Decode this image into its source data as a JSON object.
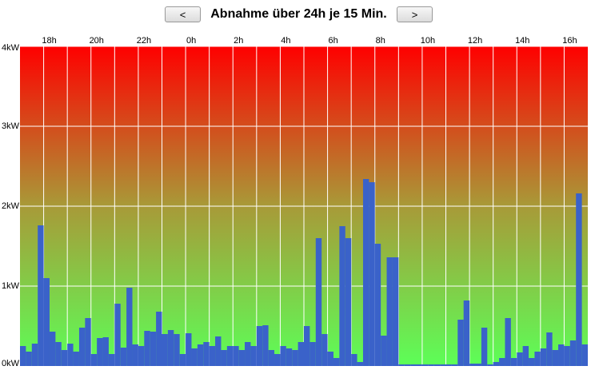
{
  "controls": {
    "prev": "<",
    "next": ">"
  },
  "chart_data": {
    "type": "bar",
    "title": "Abnahme über 24h je 15 Min.",
    "color": "#3a62c9",
    "x": [
      17,
      17.25,
      17.5,
      17.75,
      18,
      18.25,
      18.5,
      18.75,
      19,
      19.25,
      19.5,
      19.75,
      20,
      20.25,
      20.5,
      20.75,
      21,
      21.25,
      21.5,
      21.75,
      22,
      22.25,
      22.5,
      22.75,
      23,
      23.25,
      23.5,
      23.75,
      24,
      24.25,
      24.5,
      24.75,
      25,
      25.25,
      25.5,
      25.75,
      26,
      26.25,
      26.5,
      26.75,
      27,
      27.25,
      27.5,
      27.75,
      28,
      28.25,
      28.5,
      28.75,
      29,
      29.25,
      29.5,
      29.75,
      30,
      30.25,
      30.5,
      30.75,
      31,
      31.25,
      31.5,
      31.75,
      32,
      32.25,
      32.5,
      32.75,
      33,
      33.25,
      33.5,
      33.75,
      34,
      34.25,
      34.5,
      34.75,
      35,
      35.25,
      35.5,
      35.75,
      36,
      36.25,
      36.5,
      36.75,
      37,
      37.25,
      37.5,
      37.75,
      38,
      38.25,
      38.5,
      38.75,
      39,
      39.25,
      39.5,
      39.75,
      40,
      40.25,
      40.5,
      40.75
    ],
    "values": [
      0.25,
      0.18,
      0.28,
      1.76,
      1.1,
      0.43,
      0.3,
      0.2,
      0.28,
      0.18,
      0.48,
      0.6,
      0.15,
      0.35,
      0.36,
      0.15,
      0.78,
      0.23,
      0.98,
      0.27,
      0.25,
      0.44,
      0.43,
      0.68,
      0.4,
      0.45,
      0.4,
      0.15,
      0.41,
      0.22,
      0.27,
      0.3,
      0.25,
      0.37,
      0.2,
      0.25,
      0.25,
      0.2,
      0.3,
      0.25,
      0.5,
      0.51,
      0.2,
      0.15,
      0.25,
      0.22,
      0.2,
      0.3,
      0.5,
      0.3,
      1.6,
      0.4,
      0.18,
      0.1,
      1.75,
      1.6,
      0.15,
      0.05,
      2.34,
      2.3,
      1.53,
      0.38,
      1.36,
      1.36,
      0.02,
      0.02,
      0.02,
      0.02,
      0.02,
      0.02,
      0.02,
      0.02,
      0.02,
      0.02,
      0.58,
      0.82,
      0.03,
      0.03,
      0.48,
      0.02,
      0.05,
      0.1,
      0.6,
      0.1,
      0.17,
      0.25,
      0.1,
      0.18,
      0.22,
      0.42,
      0.2,
      0.27,
      0.25,
      0.32,
      2.16,
      0.27
    ],
    "bar_width": 0.25,
    "xlim": [
      17,
      41
    ],
    "xticks": [
      {
        "value": 18,
        "label": "18h"
      },
      {
        "value": 20,
        "label": "20h"
      },
      {
        "value": 22,
        "label": "22h"
      },
      {
        "value": 24,
        "label": "0h"
      },
      {
        "value": 26,
        "label": "2h"
      },
      {
        "value": 28,
        "label": "4h"
      },
      {
        "value": 30,
        "label": "6h"
      },
      {
        "value": 32,
        "label": "8h"
      },
      {
        "value": 34,
        "label": "10h"
      },
      {
        "value": 36,
        "label": "12h"
      },
      {
        "value": 38,
        "label": "14h"
      },
      {
        "value": 40,
        "label": "16h"
      }
    ],
    "xgrid": [
      18,
      19,
      20,
      21,
      22,
      23,
      24,
      25,
      26,
      27,
      28,
      29,
      30,
      31,
      32,
      33,
      34,
      35,
      36,
      37,
      38,
      39,
      40
    ],
    "ylim": [
      0,
      4
    ],
    "yticks": [
      {
        "value": 0,
        "label": "0kW"
      },
      {
        "value": 1,
        "label": "1kW"
      },
      {
        "value": 2,
        "label": "2kW"
      },
      {
        "value": 3,
        "label": "3kW"
      },
      {
        "value": 4,
        "label": "4kW"
      }
    ],
    "grid": true
  }
}
